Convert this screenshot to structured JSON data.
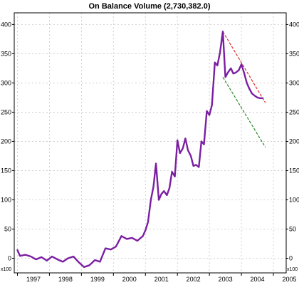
{
  "chart_data": {
    "type": "line",
    "title": "On Balance Volume (2,730,382.0)",
    "axis_unit_label": "x100",
    "x_label": "",
    "y_label": "",
    "ylim": [
      -25,
      420
    ],
    "xlim": [
      1996.9,
      2005.4
    ],
    "y_ticks": [
      0,
      50,
      100,
      150,
      200,
      250,
      300,
      350,
      400
    ],
    "x_ticks": [
      "1997",
      "1998",
      "1999",
      "2000",
      "2001",
      "2002",
      "2003",
      "2004",
      "2005"
    ],
    "grid": true,
    "colors": {
      "obv_line": "#7b1fa2",
      "upper_trendline": "#e03030",
      "lower_trendline": "#2e8b2e",
      "grid": "#c8c8c8"
    },
    "series": [
      {
        "x": [
          1997.0,
          1997.08,
          1997.25,
          1997.42,
          1997.58,
          1997.75,
          1997.92,
          1998.08,
          1998.25,
          1998.42,
          1998.58,
          1998.75,
          1998.92,
          1999.08,
          1999.25,
          1999.42,
          1999.58,
          1999.75,
          1999.92,
          2000.08,
          2000.25,
          2000.42,
          2000.58,
          2000.75,
          2000.92,
          2001.0,
          2001.08,
          2001.17,
          2001.25,
          2001.33,
          2001.42,
          2001.5,
          2001.58,
          2001.67,
          2001.75,
          2001.83,
          2001.92,
          2002.0,
          2002.08,
          2002.17,
          2002.25,
          2002.33,
          2002.42,
          2002.5,
          2002.58,
          2002.67,
          2002.75,
          2002.83,
          2002.92,
          2003.0,
          2003.08,
          2003.17,
          2003.25,
          2003.33,
          2003.42,
          2003.5,
          2003.58,
          2003.67,
          2003.75,
          2003.83,
          2003.92,
          2004.0,
          2004.08,
          2004.17,
          2004.25,
          2004.33,
          2004.42,
          2004.5,
          2004.58,
          2004.67
        ],
        "values": [
          14,
          4,
          6,
          3,
          -2,
          2,
          -4,
          3,
          -2,
          -6,
          0,
          3,
          -7,
          -15,
          -12,
          -3,
          -6,
          17,
          15,
          20,
          38,
          33,
          35,
          30,
          38,
          48,
          62,
          100,
          122,
          162,
          100,
          110,
          115,
          108,
          120,
          148,
          140,
          202,
          180,
          188,
          205,
          185,
          175,
          158,
          160,
          156,
          200,
          195,
          252,
          245,
          262,
          335,
          330,
          352,
          388,
          310,
          318,
          325,
          316,
          318,
          322,
          332,
          318,
          300,
          290,
          282,
          278,
          275,
          274,
          274
        ]
      }
    ],
    "trendlines": [
      {
        "x": [
          2003.42,
          2004.75
        ],
        "values": [
          388,
          266
        ]
      },
      {
        "x": [
          2003.42,
          2004.75
        ],
        "values": [
          310,
          190
        ]
      }
    ]
  }
}
